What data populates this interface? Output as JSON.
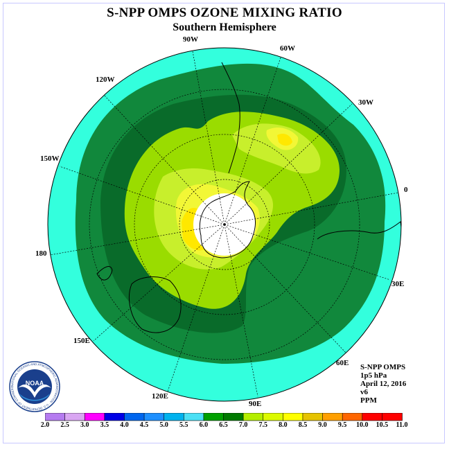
{
  "title": "S-NPP OMPS OZONE MIXING RATIO",
  "subtitle": "Southern Hemisphere",
  "longitude_labels": {
    "w90": "90W",
    "w60": "60W",
    "w30": "30W",
    "w120": "120W",
    "w150": "150W",
    "e0": "0",
    "d180": "180",
    "e30": "30E",
    "e150": "150E",
    "e60": "60E",
    "e120": "120E",
    "e90": "90E"
  },
  "info": {
    "instrument": "S-NPP OMPS",
    "level": "1p5 hPa",
    "date": "April 12, 2016",
    "version": "v6",
    "units": "PPM"
  },
  "logo": {
    "text": "NOAA",
    "ring_text": "NATIONAL OCEANIC AND ATMOSPHERIC ADMINISTRATION · U.S. DEPARTMENT OF COMMERCE",
    "icon": "noaa-seagull-emblem"
  },
  "colorbar": {
    "ticks": [
      "2.0",
      "2.5",
      "3.0",
      "3.5",
      "4.0",
      "4.5",
      "5.0",
      "5.5",
      "6.0",
      "6.5",
      "7.0",
      "7.5",
      "8.0",
      "8.5",
      "9.0",
      "9.5",
      "10.0",
      "10.5",
      "11.0"
    ],
    "colors": [
      "#b57bf0",
      "#d9a6f2",
      "#ff00ff",
      "#0000e6",
      "#0066ee",
      "#1e90ff",
      "#00b2ee",
      "#4ce0f5",
      "#00a000",
      "#007a00",
      "#b4ee00",
      "#dcfa00",
      "#ffff00",
      "#e6c300",
      "#ff9f00",
      "#ff6600",
      "#ff0000",
      "#ff0000",
      "#8b5a2b"
    ]
  },
  "map_colors": {
    "c5_5": "#33ffdd",
    "c6_0": "#11883c",
    "c6_5": "#096b2a",
    "c7_0": "#9adc00",
    "c7_5": "#c8ef2c",
    "c8_0": "#f2f736",
    "c8_5": "#ffe800",
    "hole": "#ffffff"
  }
}
